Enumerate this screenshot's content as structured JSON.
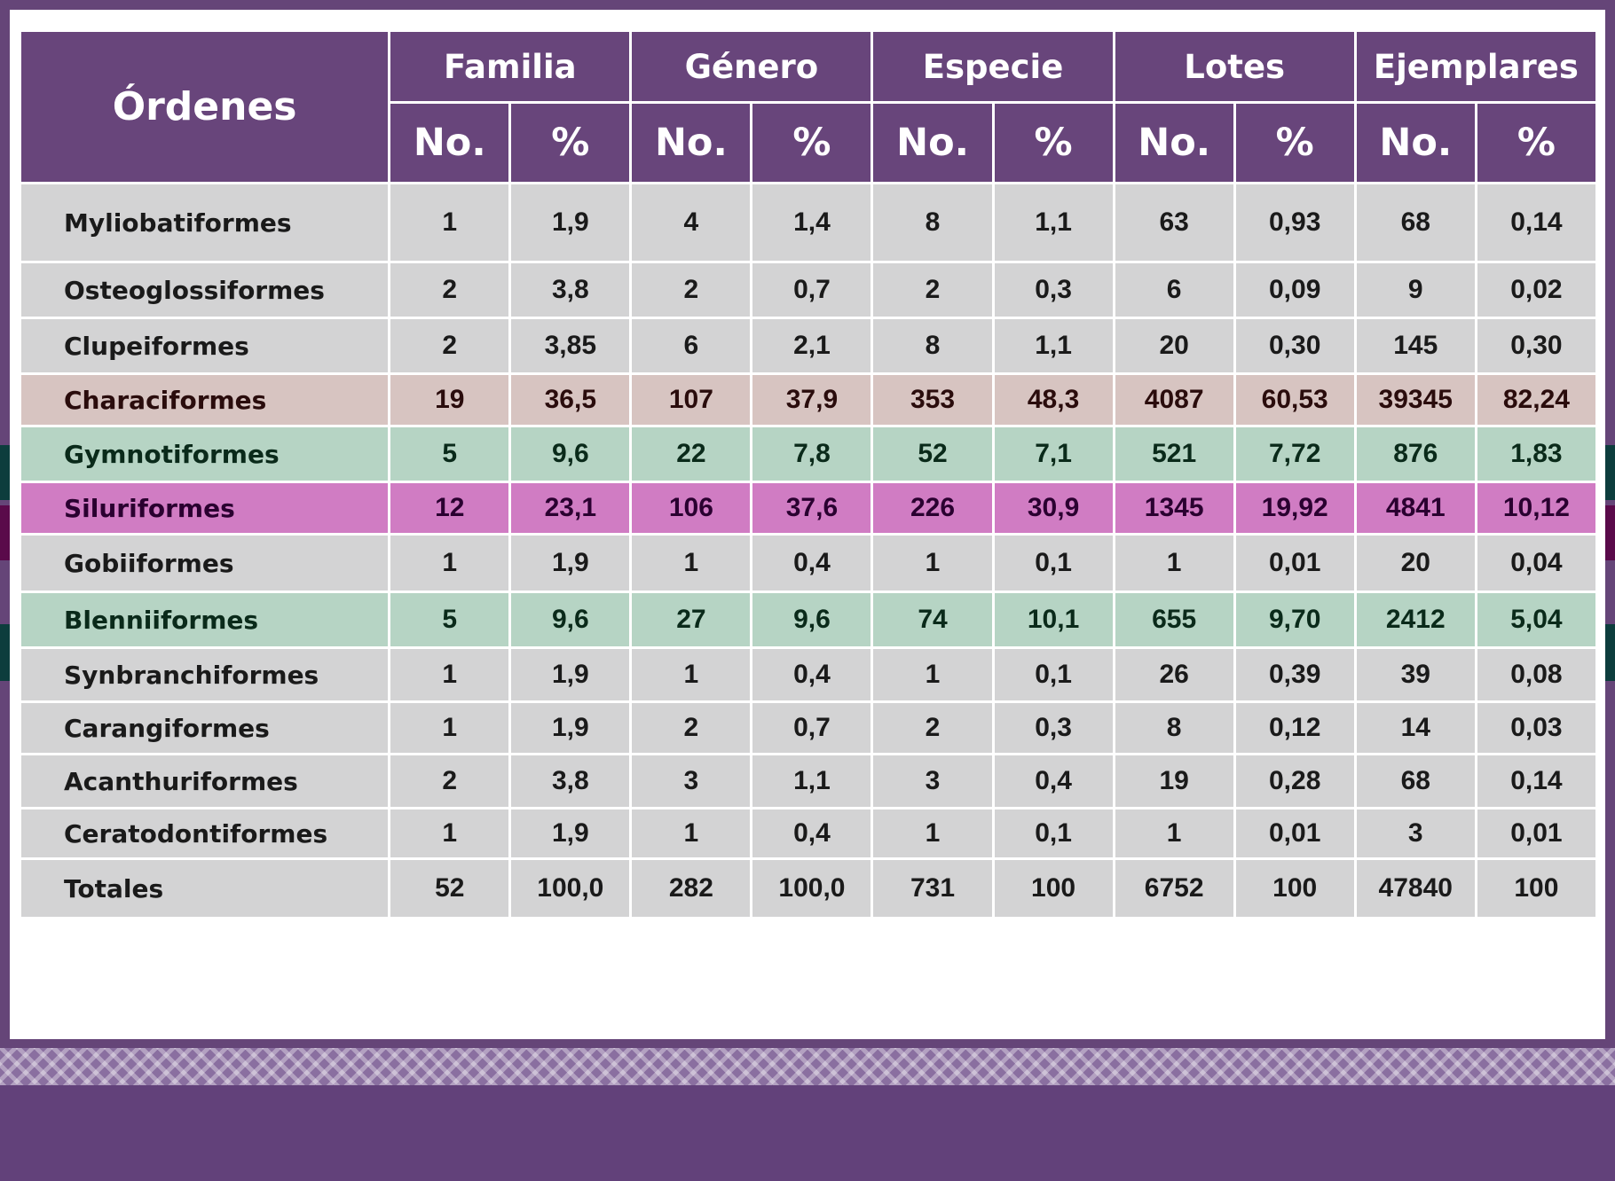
{
  "table": {
    "header": {
      "orders_label": "Órdenes",
      "groups": [
        "Familia",
        "Género",
        "Especie",
        "Lotes",
        "Ejemplares"
      ],
      "no_label": "No.",
      "pct_label": "%"
    },
    "rows": [
      {
        "name": "Myliobatiformes",
        "values": [
          "1",
          "1,9",
          "4",
          "1,4",
          "8",
          "1,1",
          "63",
          "0,93",
          "68",
          "0,14"
        ]
      },
      {
        "name": "Osteoglossiformes",
        "values": [
          "2",
          "3,8",
          "2",
          "0,7",
          "2",
          "0,3",
          "6",
          "0,09",
          "9",
          "0,02"
        ]
      },
      {
        "name": "Clupeiformes",
        "values": [
          "2",
          "3,85",
          "6",
          "2,1",
          "8",
          "1,1",
          "20",
          "0,30",
          "145",
          "0,30"
        ]
      },
      {
        "name": "Characiformes",
        "values": [
          "19",
          "36,5",
          "107",
          "37,9",
          "353",
          "48,3",
          "4087",
          "60,53",
          "39345",
          "82,24"
        ]
      },
      {
        "name": "Gymnotiformes",
        "values": [
          "5",
          "9,6",
          "22",
          "7,8",
          "52",
          "7,1",
          "521",
          "7,72",
          "876",
          "1,83"
        ]
      },
      {
        "name": "Siluriformes",
        "values": [
          "12",
          "23,1",
          "106",
          "37,6",
          "226",
          "30,9",
          "1345",
          "19,92",
          "4841",
          "10,12"
        ]
      },
      {
        "name": "Gobiiformes",
        "values": [
          "1",
          "1,9",
          "1",
          "0,4",
          "1",
          "0,1",
          "1",
          "0,01",
          "20",
          "0,04"
        ]
      },
      {
        "name": "Blenniiformes",
        "values": [
          "5",
          "9,6",
          "27",
          "9,6",
          "74",
          "10,1",
          "655",
          "9,70",
          "2412",
          "5,04"
        ]
      },
      {
        "name": "Synbranchiformes",
        "values": [
          "1",
          "1,9",
          "1",
          "0,4",
          "1",
          "0,1",
          "26",
          "0,39",
          "39",
          "0,08"
        ]
      },
      {
        "name": "Carangiformes",
        "values": [
          "1",
          "1,9",
          "2",
          "0,7",
          "2",
          "0,3",
          "8",
          "0,12",
          "14",
          "0,03"
        ]
      },
      {
        "name": "Acanthuriformes",
        "values": [
          "2",
          "3,8",
          "3",
          "1,1",
          "3",
          "0,4",
          "19",
          "0,28",
          "68",
          "0,14"
        ]
      },
      {
        "name": "Ceratodontiformes",
        "values": [
          "1",
          "1,9",
          "1",
          "0,4",
          "1",
          "0,1",
          "1",
          "0,01",
          "3",
          "0,01"
        ]
      },
      {
        "name": "Totales",
        "values": [
          "52",
          "100,0",
          "282",
          "100,0",
          "731",
          "100",
          "6752",
          "100",
          "47840",
          "100"
        ]
      }
    ]
  },
  "colors": {
    "header_bg": "#68457b",
    "row_default": "#d3d3d4",
    "row_characiformes": "#d7c4c1",
    "row_gymnotiformes": "#b6d4c4",
    "row_siluriformes": "#d07cc3",
    "row_blenniiformes": "#b6d4c4",
    "footer": "#62417a"
  }
}
